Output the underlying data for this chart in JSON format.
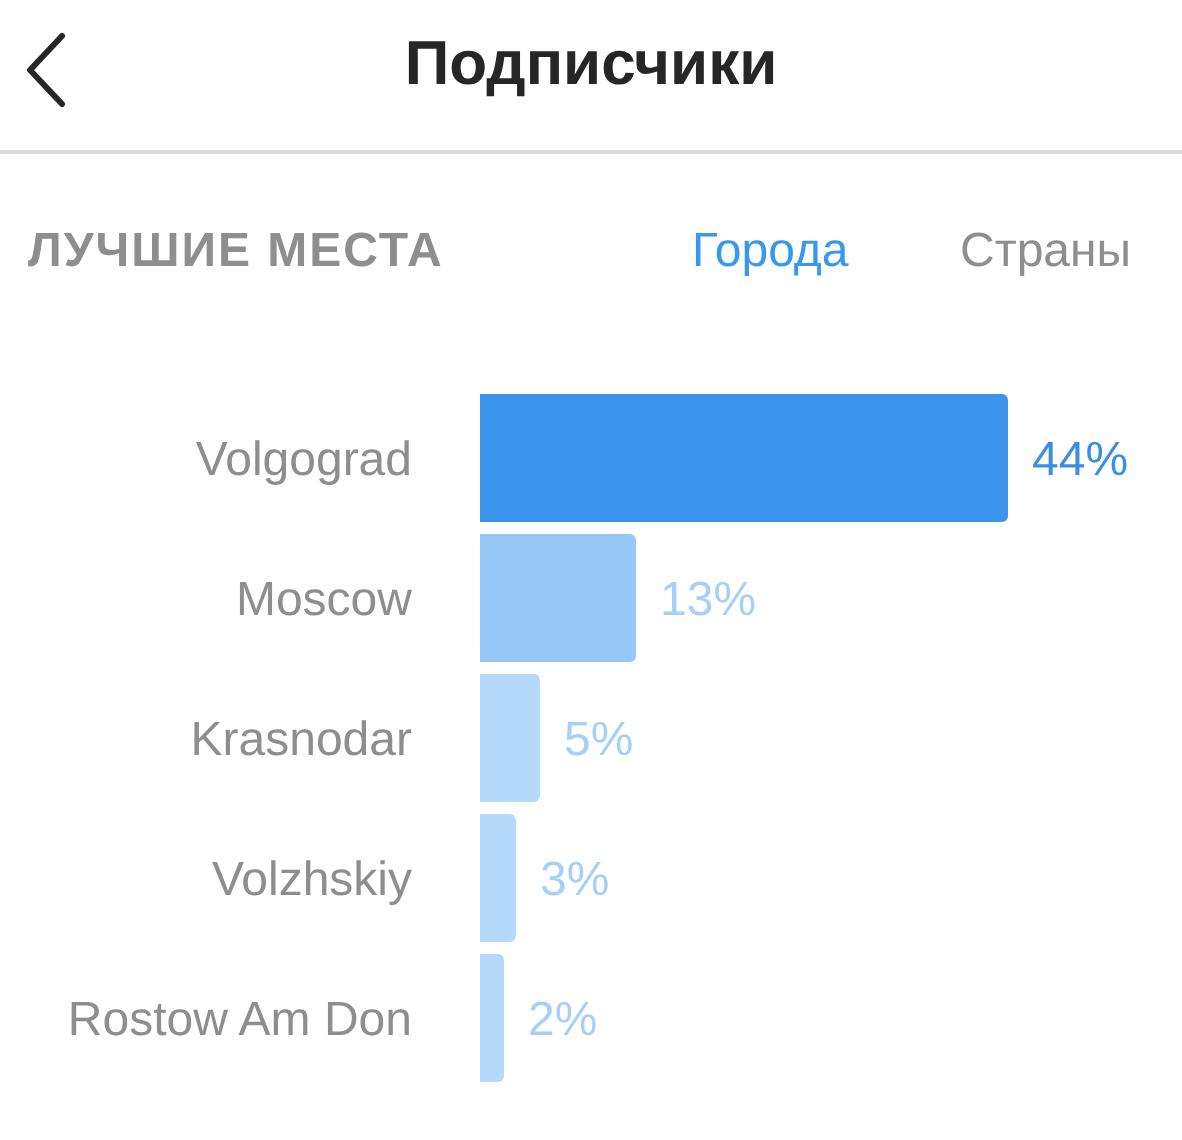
{
  "chart_data": {
    "type": "bar",
    "orientation": "horizontal",
    "title": "Подписчики",
    "subtitle": "ЛУЧШИЕ МЕСТА",
    "annotations": [
      "Города",
      "Страны"
    ],
    "categories": [
      "Volgograd",
      "Moscow",
      "Krasnodar",
      "Volzhskiy",
      "Rostow Am Don"
    ],
    "values": [
      44,
      13,
      5,
      3,
      2
    ],
    "colors": [
      "#3b94ec",
      "#96c7f7",
      "#b5d9fb",
      "#b5d9fb",
      "#b5d9fb"
    ],
    "value_labels": [
      "44%",
      "13%",
      "5%",
      "3%",
      "2%"
    ]
  }
}
